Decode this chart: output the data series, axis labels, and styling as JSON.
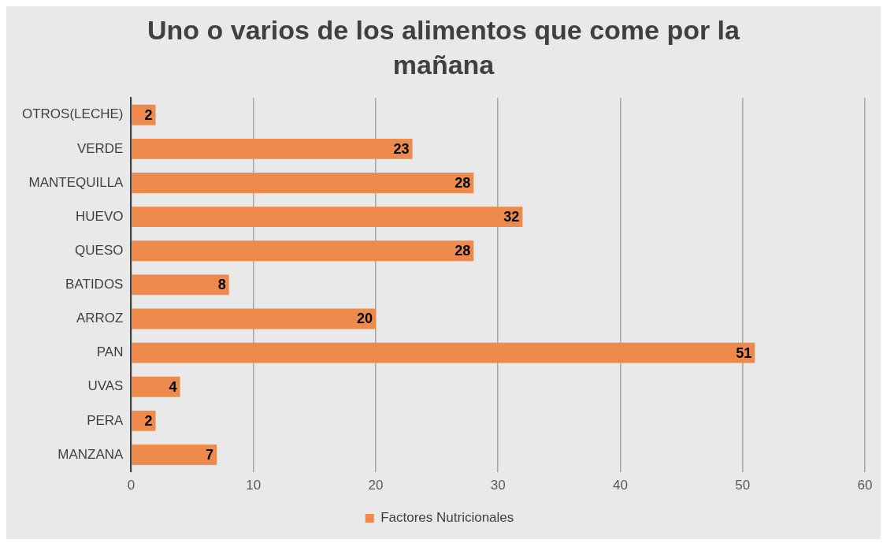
{
  "chart_data": {
    "type": "bar",
    "orientation": "horizontal",
    "title": "Uno o varios de los alimentos que come por la mañana",
    "categories": [
      "OTROS(LECHE)",
      "VERDE",
      "MANTEQUILLA",
      "HUEVO",
      "QUESO",
      "BATIDOS",
      "ARROZ",
      "PAN",
      "UVAS",
      "PERA",
      "MANZANA"
    ],
    "series": [
      {
        "name": "Factores Nutricionales",
        "color": "#ed8a4c",
        "values": [
          2,
          23,
          28,
          32,
          28,
          8,
          20,
          51,
          4,
          2,
          7
        ]
      }
    ],
    "xlim": [
      0,
      60
    ],
    "xticks": [
      0,
      10,
      20,
      30,
      40,
      50,
      60
    ],
    "grid": "x",
    "legend": "bottom",
    "data_labels": true
  }
}
